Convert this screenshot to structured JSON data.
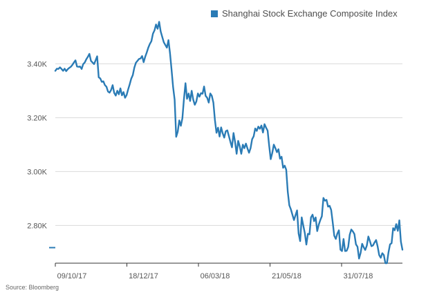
{
  "colors": {
    "series": "#2a7bb5",
    "grid": "#d9d9d9",
    "axis": "#333333",
    "text": "#555555"
  },
  "source": "Source: Bloomberg",
  "chart_data": {
    "type": "line",
    "legend": "top-right",
    "grid": "horizontal",
    "ylim": [
      2660,
      3560
    ],
    "y_ticks": [
      {
        "value": 2800,
        "label": "2.80K"
      },
      {
        "value": 3000,
        "label": "3.00K"
      },
      {
        "value": 3200,
        "label": "3.20K"
      },
      {
        "value": 3400,
        "label": "3.40K"
      }
    ],
    "x_ticks": [
      "09/10/17",
      "18/12/17",
      "06/03/18",
      "21/05/18",
      "31/07/18"
    ],
    "series": [
      {
        "name": "Shanghai Stock Exchange Composite Index",
        "values": [
          3374,
          3382,
          3381,
          3387,
          3381,
          3374,
          3382,
          3373,
          3380,
          3385,
          3389,
          3396,
          3405,
          3413,
          3390,
          3389,
          3390,
          3381,
          3399,
          3405,
          3417,
          3426,
          3437,
          3411,
          3405,
          3399,
          3413,
          3428,
          3350,
          3346,
          3333,
          3335,
          3321,
          3315,
          3297,
          3293,
          3303,
          3321,
          3292,
          3282,
          3300,
          3287,
          3309,
          3283,
          3295,
          3274,
          3284,
          3305,
          3324,
          3345,
          3358,
          3386,
          3404,
          3411,
          3418,
          3420,
          3429,
          3406,
          3426,
          3442,
          3460,
          3474,
          3484,
          3512,
          3524,
          3546,
          3530,
          3556,
          3520,
          3500,
          3480,
          3470,
          3460,
          3488,
          3440,
          3379,
          3314,
          3267,
          3129,
          3148,
          3190,
          3170,
          3198,
          3269,
          3328,
          3270,
          3290,
          3262,
          3300,
          3267,
          3248,
          3260,
          3290,
          3278,
          3291,
          3289,
          3316,
          3281,
          3274,
          3256,
          3290,
          3281,
          3256,
          3191,
          3144,
          3163,
          3130,
          3164,
          3142,
          3126,
          3150,
          3153,
          3132,
          3110,
          3090,
          3143,
          3110,
          3066,
          3114,
          3094,
          3066,
          3100,
          3087,
          3104,
          3086,
          3070,
          3087,
          3120,
          3131,
          3160,
          3151,
          3167,
          3159,
          3171,
          3145,
          3176,
          3163,
          3152,
          3096,
          3046,
          3069,
          3100,
          3087,
          3072,
          3083,
          3048,
          3055,
          3014,
          3022,
          3007,
          2925,
          2875,
          2860,
          2840,
          2820,
          2838,
          2856,
          2770,
          2742,
          2830,
          2800,
          2772,
          2729,
          2769,
          2767,
          2830,
          2840,
          2816,
          2830,
          2779,
          2803,
          2820,
          2834,
          2902,
          2892,
          2895,
          2870,
          2873,
          2858,
          2812,
          2762,
          2750,
          2770,
          2782,
          2710,
          2705,
          2750,
          2705,
          2706,
          2720,
          2766,
          2785,
          2778,
          2768,
          2730,
          2721,
          2677,
          2698,
          2732,
          2719,
          2709,
          2725,
          2759,
          2742,
          2723,
          2726,
          2737,
          2746,
          2722,
          2690,
          2680,
          2697,
          2690,
          2660,
          2660,
          2700,
          2730,
          2734,
          2790,
          2782,
          2805,
          2780,
          2819,
          2740,
          2710
        ]
      }
    ]
  }
}
